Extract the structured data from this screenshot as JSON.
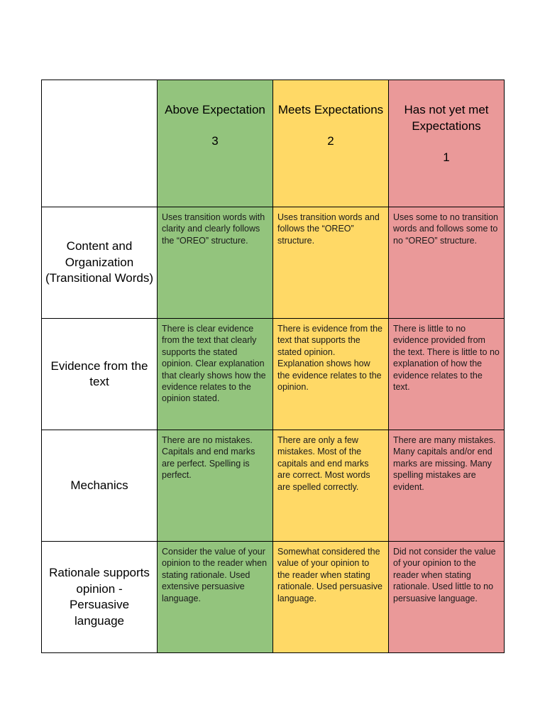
{
  "colors": {
    "above": "#93c47d",
    "meets": "#ffd966",
    "not_met": "#ea9999"
  },
  "levels": [
    {
      "title": "Above Expectation",
      "score": "3"
    },
    {
      "title": "Meets Expectations",
      "score": "2"
    },
    {
      "title": "Has not yet met Expectations",
      "score": "1"
    }
  ],
  "criteria": [
    {
      "name": "Content and Organization (Transitional Words)",
      "cells": [
        "Uses transition words with clarity and clearly follows the “OREO” structure.",
        "Uses transition words and follows the “OREO” structure.",
        "Uses some to no transition words and follows some to no “OREO” structure."
      ]
    },
    {
      "name": "Evidence from the text",
      "cells": [
        "There is clear evidence from the text that clearly supports the stated opinion. Clear explanation that clearly shows how the evidence relates to the opinion stated.",
        "There is evidence from the text that supports the stated opinion. Explanation shows how the evidence relates to the opinion.",
        "There is little to no evidence provided from the text. There is little to no explanation of how the evidence relates to the text."
      ]
    },
    {
      "name": "Mechanics",
      "cells": [
        "There are no mistakes. Capitals and end marks are perfect. Spelling is perfect.",
        "There are only a few mistakes. Most of the capitals and end marks are correct. Most words are spelled correctly.",
        "There are many mistakes. Many capitals and/or end marks are missing. Many spelling mistakes are evident."
      ]
    },
    {
      "name": "Rationale supports opinion - Persuasive language",
      "cells": [
        "Consider the value of your opinion to the reader when stating rationale. Used extensive persuasive language.",
        "Somewhat considered the value of your opinion to the reader when stating rationale. Used persuasive language.",
        "Did not consider the value of your opinion to the reader when stating rationale. Used little to no persuasive language."
      ]
    }
  ]
}
